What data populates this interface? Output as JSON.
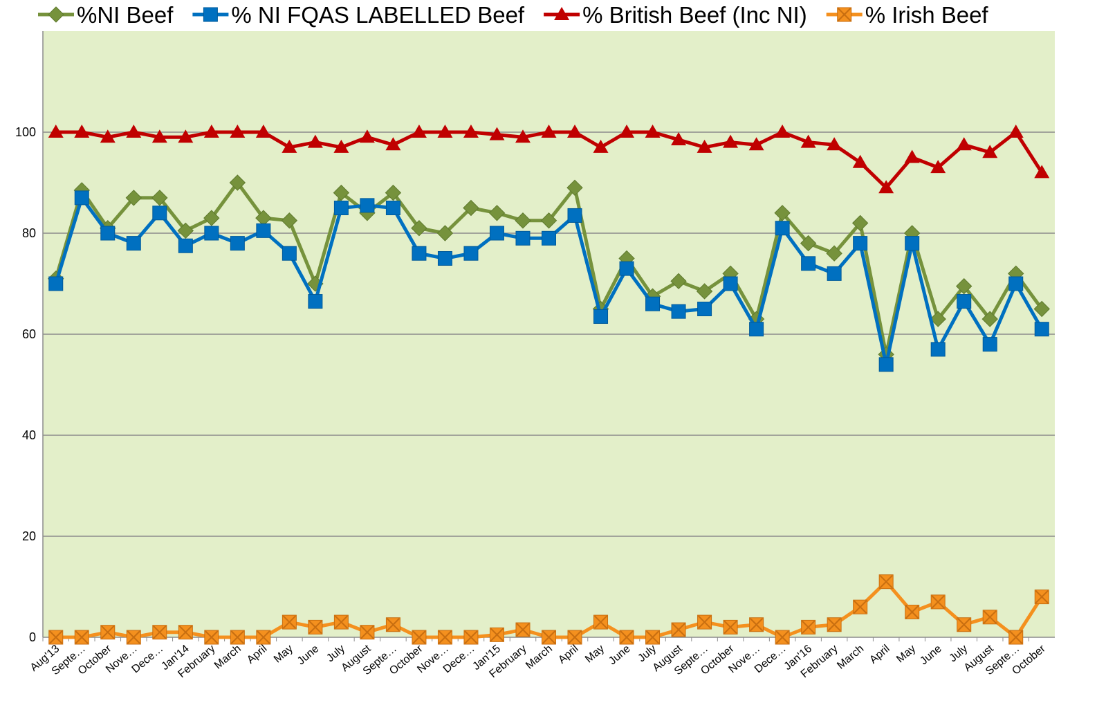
{
  "chart_data": {
    "type": "line",
    "categories": [
      "Aug'13",
      "Septe…",
      "October",
      "Nove…",
      "Dece…",
      "Jan'14",
      "February",
      "March",
      "April",
      "May",
      "June",
      "July",
      "August",
      "Septe…",
      "October",
      "Nove…",
      "Dece…",
      "Jan'15",
      "February",
      "March",
      "April",
      "May",
      "June",
      "July",
      "August",
      "Septe…",
      "October",
      "Nove…",
      "Dece…",
      "Jan'16",
      "February",
      "March",
      "April",
      "May",
      "June",
      "July",
      "August",
      "Septe…",
      "October"
    ],
    "series": [
      {
        "name": "%NI Beef",
        "color": "#76923c",
        "marker": "diamond",
        "values": [
          71,
          88.5,
          81,
          87,
          87,
          80.5,
          83,
          90,
          83,
          82.5,
          70,
          88,
          84,
          88,
          81,
          80,
          85,
          84,
          82.5,
          82.5,
          89,
          65,
          75,
          67.5,
          70.5,
          68.5,
          72,
          63,
          84,
          78,
          76,
          82,
          56,
          80,
          63,
          69.5,
          63,
          72,
          65
        ]
      },
      {
        "name": "% NI FQAS LABELLED Beef",
        "color": "#0070c0",
        "marker": "square",
        "values": [
          70,
          87,
          80,
          78,
          84,
          77.5,
          80,
          78,
          80.5,
          76,
          66.5,
          85,
          85.5,
          85,
          76,
          75,
          76,
          80,
          79,
          79,
          83.5,
          63.5,
          73,
          66,
          64.5,
          65,
          70,
          61,
          81,
          74,
          72,
          78,
          54,
          78,
          57,
          66.5,
          58,
          70,
          61
        ]
      },
      {
        "name": "% British Beef (Inc NI)",
        "color": "#c00000",
        "marker": "triangle",
        "values": [
          100,
          100,
          99,
          100,
          99,
          99,
          100,
          100,
          100,
          97,
          98,
          97,
          99,
          97.5,
          100,
          100,
          100,
          99.5,
          99,
          100,
          100,
          97,
          100,
          100,
          98.5,
          97,
          98,
          97.5,
          100,
          98,
          97.5,
          94,
          89,
          95,
          93,
          97.5,
          96,
          100,
          92
        ]
      },
      {
        "name": "% Irish Beef",
        "color": "#f4901e",
        "marker": "x-square",
        "values": [
          0,
          0,
          1,
          0,
          1,
          1,
          0,
          0,
          0,
          3,
          2,
          3,
          1,
          2.5,
          0,
          0,
          0,
          0.5,
          1.5,
          0,
          0,
          3,
          0,
          0,
          1.5,
          3,
          2,
          2.5,
          0,
          2,
          2.5,
          6,
          11,
          5,
          7,
          2.5,
          4,
          0,
          8
        ]
      }
    ],
    "ylim": [
      0,
      120
    ],
    "yticks": [
      0,
      20,
      40,
      60,
      80,
      100
    ],
    "grid": true,
    "plot_background": "#e3efc9",
    "legend": "top"
  }
}
